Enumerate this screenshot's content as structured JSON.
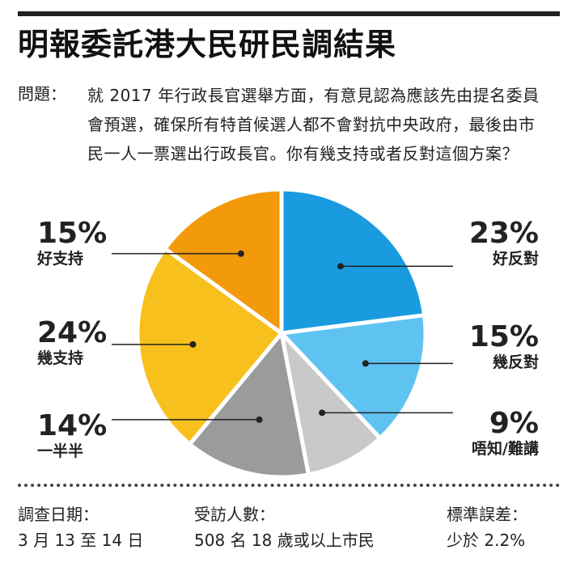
{
  "title": "明報委託港大民研民調結果",
  "question": {
    "label": "問題：",
    "text": "就 2017 年行政長官選舉方面，有意見認為應該先由提名委員會預選，確保所有特首候選人都不會對抗中央政府，最後由市民一人一票選出行政長官。你有幾支持或者反對這個方案？"
  },
  "colors": {
    "strongly_oppose": "#1a9be0",
    "somewhat_oppose": "#5ec3f1",
    "dont_know": "#c9c9c9",
    "half": "#9b9b9b",
    "somewhat_support": "#f8c01d",
    "strongly_support": "#f29a0c"
  },
  "chart_data": {
    "type": "pie",
    "slices": [
      {
        "label": "好反對",
        "pct_text": "23%",
        "value": 23,
        "color": "#1a9be0"
      },
      {
        "label": "幾反對",
        "pct_text": "15%",
        "value": 15,
        "color": "#5ec3f1"
      },
      {
        "label": "唔知/難講",
        "pct_text": "9%",
        "value": 9,
        "color": "#c9c9c9"
      },
      {
        "label": "一半半",
        "pct_text": "14%",
        "value": 14,
        "color": "#9b9b9b"
      },
      {
        "label": "幾支持",
        "pct_text": "24%",
        "value": 24,
        "color": "#f8c01d"
      },
      {
        "label": "好支持",
        "pct_text": "15%",
        "value": 15,
        "color": "#f29a0c"
      }
    ]
  },
  "footer": {
    "date_label": "調查日期：",
    "date_value": "3 月 13 至 14 日",
    "sample_label": "受訪人數：",
    "sample_value": "508 名 18 歲或以上市民",
    "error_label": "標準誤差：",
    "error_value": "少於 2.2%"
  }
}
